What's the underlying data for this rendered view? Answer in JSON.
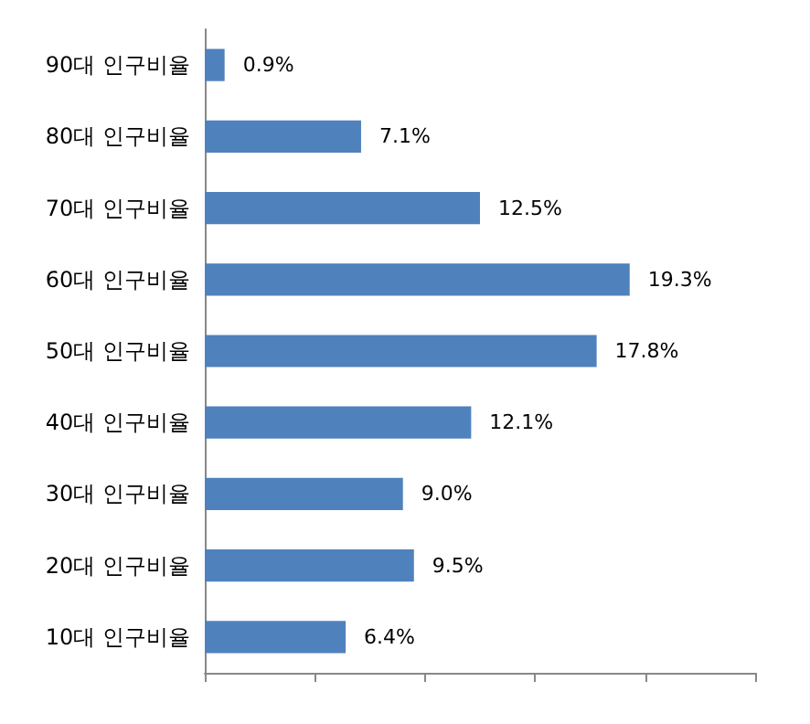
{
  "chart_data": {
    "type": "bar",
    "orientation": "horizontal",
    "categories": [
      "90대 인구비율",
      "80대 인구비율",
      "70대 인구비율",
      "60대 인구비율",
      "50대 인구비율",
      "40대 인구비율",
      "30대 인구비율",
      "20대 인구비율",
      "10대 인구비율"
    ],
    "values": [
      0.9,
      7.1,
      12.5,
      19.3,
      17.8,
      12.1,
      9.0,
      9.5,
      6.4
    ],
    "value_labels": [
      "0.9%",
      "7.1%",
      "12.5%",
      "19.3%",
      "17.8%",
      "12.1%",
      "9.0%",
      "9.5%",
      "6.4%"
    ],
    "color": "#4f81bd",
    "xlim": [
      0,
      25
    ],
    "xticks": [
      {
        "value": 0,
        "label": null
      },
      {
        "value": 5,
        "label": null
      },
      {
        "value": 10,
        "label": null
      },
      {
        "value": 15,
        "label": null
      },
      {
        "value": 20,
        "label": null
      },
      {
        "value": 25,
        "label": null
      }
    ],
    "tick_labels": "y",
    "grid": false
  }
}
